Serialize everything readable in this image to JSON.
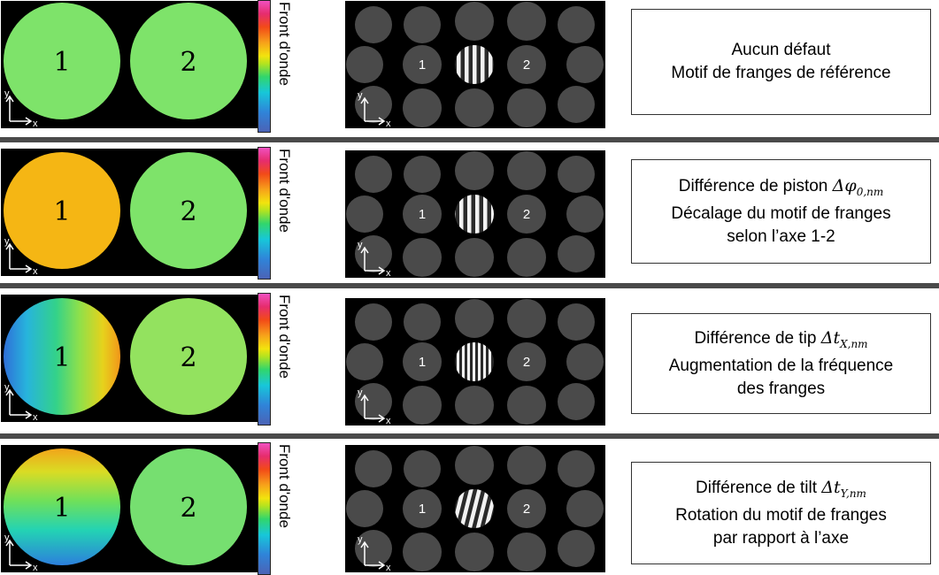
{
  "colorbar_label": "Front d'onde",
  "axis_x": "x",
  "axis_y": "y",
  "aperture_labels": [
    "1",
    "2"
  ],
  "rows": [
    {
      "id": "reference",
      "left_fill": "#7ee36a",
      "right_fill": "#7ee36a",
      "lines": [
        "Aucun défaut",
        "Motif de franges de référence"
      ],
      "symbol": "",
      "symbol_sub": ""
    },
    {
      "id": "piston",
      "left_fill": "#f5b614",
      "right_fill": "#7ee36a",
      "lines": [
        "Différence de piston",
        "Décalage du motif de franges",
        "selon l’axe 1-2"
      ],
      "symbol": "Δφ",
      "symbol_sub": "0,nm"
    },
    {
      "id": "tip",
      "left_fill": "tip-gradient",
      "right_fill": "#93e25f",
      "lines": [
        "Différence de tip",
        "Augmentation de la fréquence",
        "des franges"
      ],
      "symbol": "Δt",
      "symbol_sub": "X,nm"
    },
    {
      "id": "tilt",
      "left_fill": "tilt-gradient",
      "right_fill": "#76df70",
      "lines": [
        "Différence de tilt",
        "Rotation du motif de franges",
        "par rapport à l’axe"
      ],
      "symbol": "Δt",
      "symbol_sub": "Y,nm"
    }
  ]
}
